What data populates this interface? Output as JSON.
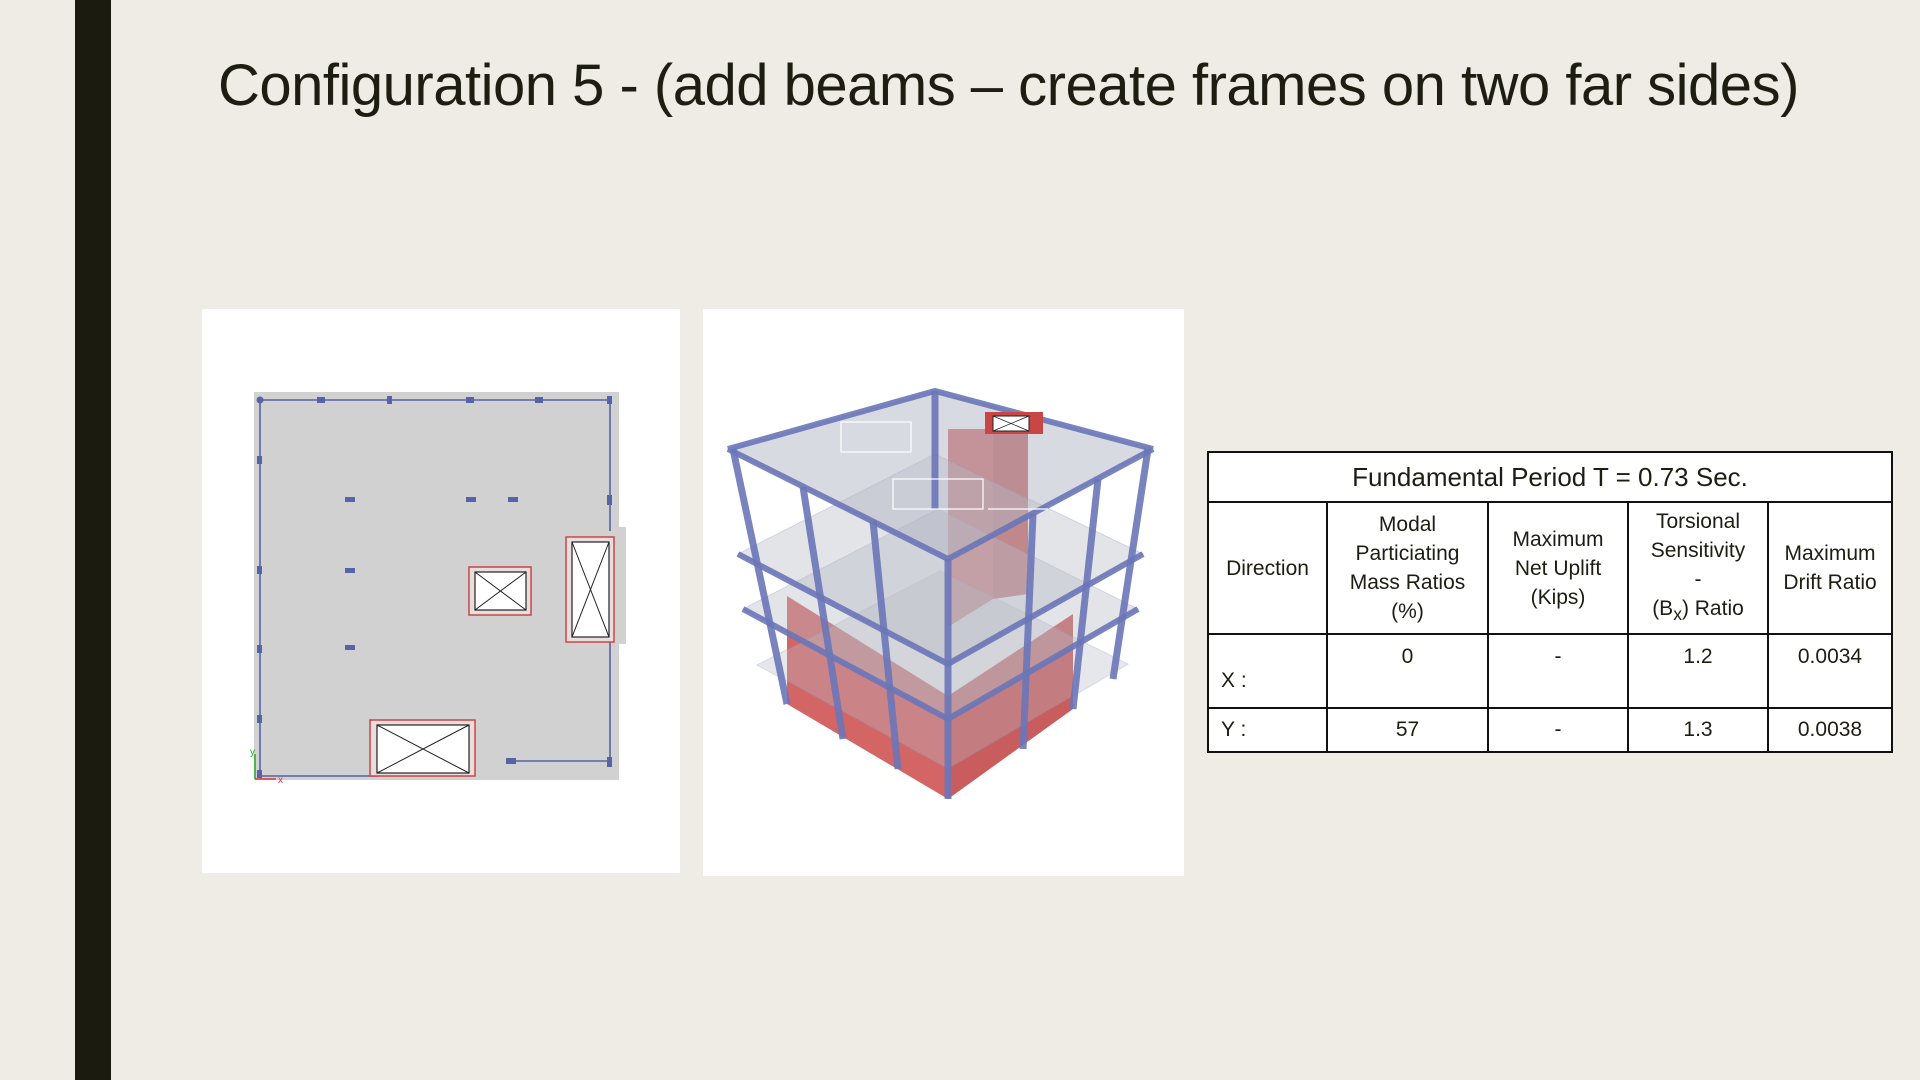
{
  "slide": {
    "title": "Configuration 5 - (add beams – create frames on two far sides)"
  },
  "figures": {
    "plan_view": {
      "axis_x_label": "x",
      "axis_y_label": "y"
    }
  },
  "results_table": {
    "caption": "Fundamental Period T = 0.73 Sec.",
    "headers": {
      "direction": "Direction",
      "modal_mass_line1": "Modal",
      "modal_mass_line2": "Particiating",
      "modal_mass_line3": "Mass Ratios",
      "modal_mass_line4": "(%)",
      "uplift_line1": "Maximum",
      "uplift_line2": "Net Uplift",
      "uplift_line3": "(Kips)",
      "torsion_line1": "Torsional",
      "torsion_line2": "Sensitivity",
      "torsion_line3": "-",
      "torsion_paren_open": "(B",
      "torsion_subscript": "x",
      "torsion_suffix": ") Ratio",
      "drift_line1": "Maximum",
      "drift_line2": "Drift Ratio"
    },
    "rows": [
      {
        "direction": "X :",
        "modal_mass": "0",
        "uplift": "-",
        "torsion": "1.2",
        "drift": "0.0034"
      },
      {
        "direction": "Y :",
        "modal_mass": "57",
        "uplift": "-",
        "torsion": "1.3",
        "drift": "0.0038"
      }
    ]
  },
  "colors": {
    "background": "#eeece4",
    "accent_bar": "#1b1b10",
    "slab": "#d1d1d1",
    "column": "#5763a8",
    "shear_wall": "#c94646"
  }
}
